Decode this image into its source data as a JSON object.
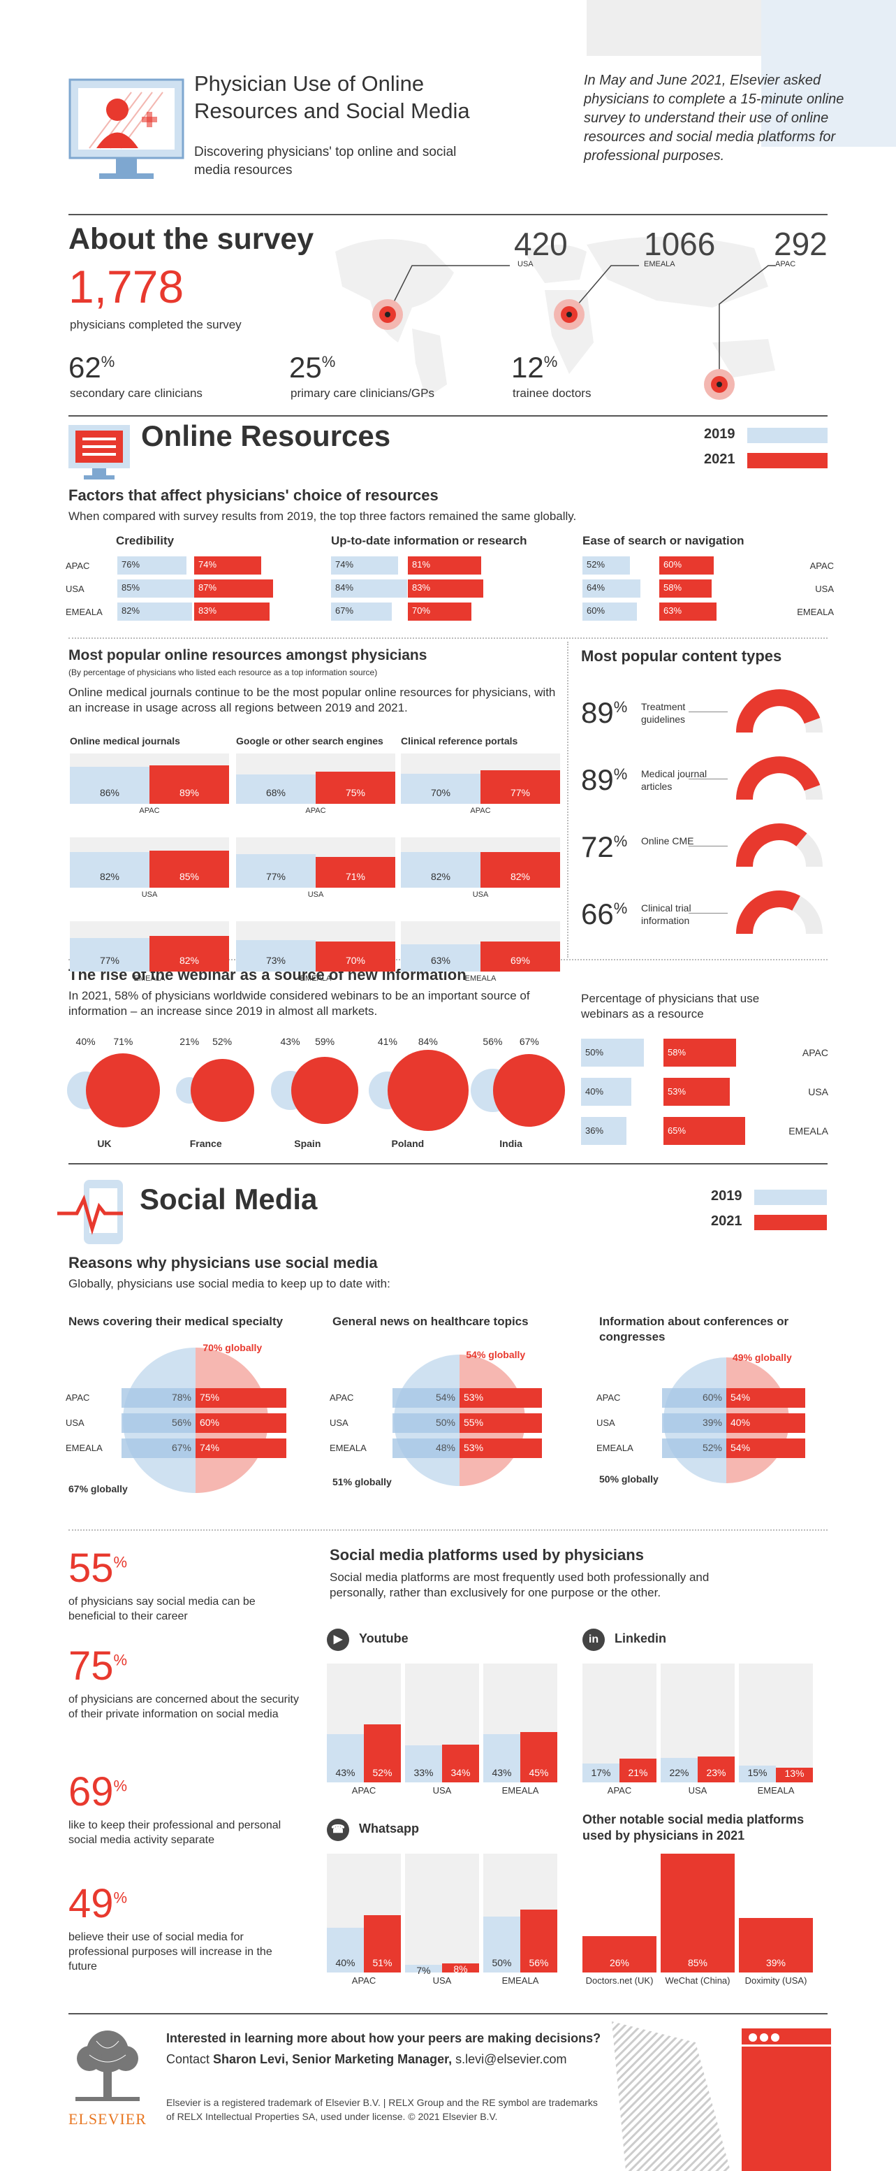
{
  "header": {
    "title": "Physician Use of Online Resources and Social Media",
    "subtitle": "Discovering physicians' top online and social media resources",
    "intro": "In May and June 2021, Elsevier asked physicians to complete a 15-minute online survey to understand their use of online resources and social media platforms for professional purposes."
  },
  "survey": {
    "title": "About the survey",
    "total": "1,778",
    "total_label": "physicians completed the survey",
    "usa_n": "420",
    "usa": "USA",
    "emeala_n": "1066",
    "emeala": "EMEALA",
    "apac_n": "292",
    "apac": "APAC",
    "stats": [
      {
        "value": "62",
        "unit": "%",
        "label": "secondary care clinicians"
      },
      {
        "value": "25",
        "unit": "%",
        "label": "primary care clinicians/GPs"
      },
      {
        "value": "12",
        "unit": "%",
        "label": "trainee doctors"
      }
    ]
  },
  "legend": {
    "y2019": "2019",
    "y2021": "2021"
  },
  "online": {
    "title": "Online Resources",
    "factors_title": "Factors that affect physicians' choice of resources",
    "factors_desc": "When compared with survey results from 2019, the top three factors remained the same globally.",
    "factors": [
      {
        "name": "Credibility",
        "rows": [
          {
            "region": "APAC",
            "v19": "76%",
            "v21": "74%",
            "n19": 76,
            "n21": 74
          },
          {
            "region": "USA",
            "v19": "85%",
            "v21": "87%",
            "n19": 85,
            "n21": 87
          },
          {
            "region": "EMEALA",
            "v19": "82%",
            "v21": "83%",
            "n19": 82,
            "n21": 83
          }
        ]
      },
      {
        "name": "Up-to-date information or research",
        "rows": [
          {
            "region": "APAC",
            "v19": "74%",
            "v21": "81%",
            "n19": 74,
            "n21": 81
          },
          {
            "region": "USA",
            "v19": "84%",
            "v21": "83%",
            "n19": 84,
            "n21": 83
          },
          {
            "region": "EMEALA",
            "v19": "67%",
            "v21": "70%",
            "n19": 67,
            "n21": 70
          }
        ]
      },
      {
        "name": "Ease of search or navigation",
        "rows": [
          {
            "region": "APAC",
            "v19": "52%",
            "v21": "60%",
            "n19": 52,
            "n21": 60
          },
          {
            "region": "USA",
            "v19": "64%",
            "v21": "58%",
            "n19": 64,
            "n21": 58
          },
          {
            "region": "EMEALA",
            "v19": "60%",
            "v21": "63%",
            "n19": 60,
            "n21": 63
          }
        ]
      }
    ],
    "popular_title": "Most popular online resources amongst physicians",
    "popular_note": "(By percentage of physicians who listed each resource as a top information source)",
    "popular_desc": "Online medical journals continue to be the most popular online resources for physicians, with an increase in usage across all regions between 2019 and 2021.",
    "resources": [
      {
        "name": "Online medical journals",
        "rows": [
          {
            "region": "APAC",
            "v19": "86%",
            "v21": "89%",
            "n19": 86,
            "n21": 89
          },
          {
            "region": "USA",
            "v19": "82%",
            "v21": "85%",
            "n19": 82,
            "n21": 85
          },
          {
            "region": "EMEALA",
            "v19": "77%",
            "v21": "82%",
            "n19": 77,
            "n21": 82
          }
        ]
      },
      {
        "name": "Google or other search engines",
        "rows": [
          {
            "region": "APAC",
            "v19": "68%",
            "v21": "75%",
            "n19": 68,
            "n21": 75
          },
          {
            "region": "USA",
            "v19": "77%",
            "v21": "71%",
            "n19": 77,
            "n21": 71
          },
          {
            "region": "EMEALA",
            "v19": "73%",
            "v21": "70%",
            "n19": 73,
            "n21": 70
          }
        ]
      },
      {
        "name": "Clinical reference portals",
        "rows": [
          {
            "region": "APAC",
            "v19": "70%",
            "v21": "77%",
            "n19": 70,
            "n21": 77
          },
          {
            "region": "USA",
            "v19": "82%",
            "v21": "82%",
            "n19": 82,
            "n21": 82
          },
          {
            "region": "EMEALA",
            "v19": "63%",
            "v21": "69%",
            "n19": 63,
            "n21": 69
          }
        ]
      }
    ],
    "content_title": "Most popular content types",
    "content": [
      {
        "pct": "89",
        "label": "Treatment guidelines",
        "n": 89
      },
      {
        "pct": "89",
        "label": "Medical journal articles",
        "n": 89
      },
      {
        "pct": "72",
        "label": "Online CME",
        "n": 72
      },
      {
        "pct": "66",
        "label": "Clinical trial information",
        "n": 66
      }
    ],
    "webinar_title": "The rise of the webinar as a source of new information",
    "webinar_desc": "In 2021, 58% of physicians worldwide considered webinars to be an important source of information – an increase since 2019 in almost all markets.",
    "countries": [
      {
        "name": "UK",
        "v19": "40%",
        "v21": "71%",
        "n19": 40,
        "n21": 71
      },
      {
        "name": "France",
        "v19": "21%",
        "v21": "52%",
        "n19": 21,
        "n21": 52
      },
      {
        "name": "Spain",
        "v19": "43%",
        "v21": "59%",
        "n19": 43,
        "n21": 59
      },
      {
        "name": "Poland",
        "v19": "41%",
        "v21": "84%",
        "n19": 41,
        "n21": 84
      },
      {
        "name": "India",
        "v19": "56%",
        "v21": "67%",
        "n19": 56,
        "n21": 67
      }
    ],
    "webinar_pct_title": "Percentage of physicians that use webinars as a resource",
    "webinar_regions": [
      {
        "region": "APAC",
        "v19": "50%",
        "v21": "58%",
        "n19": 50,
        "n21": 58
      },
      {
        "region": "USA",
        "v19": "40%",
        "v21": "53%",
        "n19": 40,
        "n21": 53
      },
      {
        "region": "EMEALA",
        "v19": "36%",
        "v21": "65%",
        "n19": 36,
        "n21": 65
      }
    ]
  },
  "social": {
    "title": "Social Media",
    "reasons_title": "Reasons why physicians use social media",
    "reasons_desc": "Globally, physicians use social media to keep up to date with:",
    "reasons": [
      {
        "name": "News covering their medical specialty",
        "g21": "70% globally",
        "g19": "67% globally",
        "rows": [
          {
            "region": "APAC",
            "v19": "78%",
            "v21": "75%"
          },
          {
            "region": "USA",
            "v19": "56%",
            "v21": "60%"
          },
          {
            "region": "EMEALA",
            "v19": "67%",
            "v21": "74%"
          }
        ]
      },
      {
        "name": "General news on healthcare topics",
        "g21": "54% globally",
        "g19": "51% globally",
        "rows": [
          {
            "region": "APAC",
            "v19": "54%",
            "v21": "53%"
          },
          {
            "region": "USA",
            "v19": "50%",
            "v21": "55%"
          },
          {
            "region": "EMEALA",
            "v19": "48%",
            "v21": "53%"
          }
        ]
      },
      {
        "name": "Information about conferences or congresses",
        "g21": "49% globally",
        "g19": "50% globally",
        "rows": [
          {
            "region": "APAC",
            "v19": "60%",
            "v21": "54%"
          },
          {
            "region": "USA",
            "v19": "39%",
            "v21": "40%"
          },
          {
            "region": "EMEALA",
            "v19": "52%",
            "v21": "54%"
          }
        ]
      }
    ],
    "facts": [
      {
        "pct": "55",
        "label": "of physicians say social media can be beneficial to their career"
      },
      {
        "pct": "75",
        "label": "of physicians are concerned about the security of their private information on social media"
      },
      {
        "pct": "69",
        "label": "like to keep their professional and personal social media activity separate"
      },
      {
        "pct": "49",
        "label": "believe their use of social media for professional purposes will increase in the future"
      }
    ],
    "platforms_title": "Social media platforms used by physicians",
    "platforms_desc": "Social media platforms are most frequently used both professionally and personally, rather than exclusively for one purpose or the other.",
    "platforms": [
      {
        "name": "Youtube",
        "rows": [
          {
            "region": "APAC",
            "v19": "43%",
            "v21": "52%",
            "n19": 43,
            "n21": 52
          },
          {
            "region": "USA",
            "v19": "33%",
            "v21": "34%",
            "n19": 33,
            "n21": 34
          },
          {
            "region": "EMEALA",
            "v19": "43%",
            "v21": "45%",
            "n19": 43,
            "n21": 45
          }
        ]
      },
      {
        "name": "Linkedin",
        "rows": [
          {
            "region": "APAC",
            "v19": "17%",
            "v21": "21%",
            "n19": 17,
            "n21": 21
          },
          {
            "region": "USA",
            "v19": "22%",
            "v21": "23%",
            "n19": 22,
            "n21": 23
          },
          {
            "region": "EMEALA",
            "v19": "15%",
            "v21": "13%",
            "n19": 15,
            "n21": 13
          }
        ]
      },
      {
        "name": "Whatsapp",
        "rows": [
          {
            "region": "APAC",
            "v19": "40%",
            "v21": "51%",
            "n19": 40,
            "n21": 51
          },
          {
            "region": "USA",
            "v19": "7%",
            "v21": "8%",
            "n19": 7,
            "n21": 8
          },
          {
            "region": "EMEALA",
            "v19": "50%",
            "v21": "56%",
            "n19": 50,
            "n21": 56
          }
        ]
      }
    ],
    "other_title": "Other notable social media platforms used by physicians in 2021",
    "other": [
      {
        "name": "Doctors.net (UK)",
        "v": "26%",
        "n": 26
      },
      {
        "name": "WeChat (China)",
        "v": "85%",
        "n": 85
      },
      {
        "name": "Doximity (USA)",
        "v": "39%",
        "n": 39
      }
    ]
  },
  "footer": {
    "question": "Interested in learning more about how your peers are making decisions?",
    "contact_pre": "Contact ",
    "contact_name": "Sharon Levi, Senior Marketing Manager,",
    "email": "s.levi@elsevier.com",
    "legal": "Elsevier is a registered trademark of Elsevier B.V. | RELX Group and the RE symbol are trademarks of RELX Intellectual Properties SA, used under license. © 2021 Elsevier B.V.",
    "logo": "ELSEVIER"
  }
}
